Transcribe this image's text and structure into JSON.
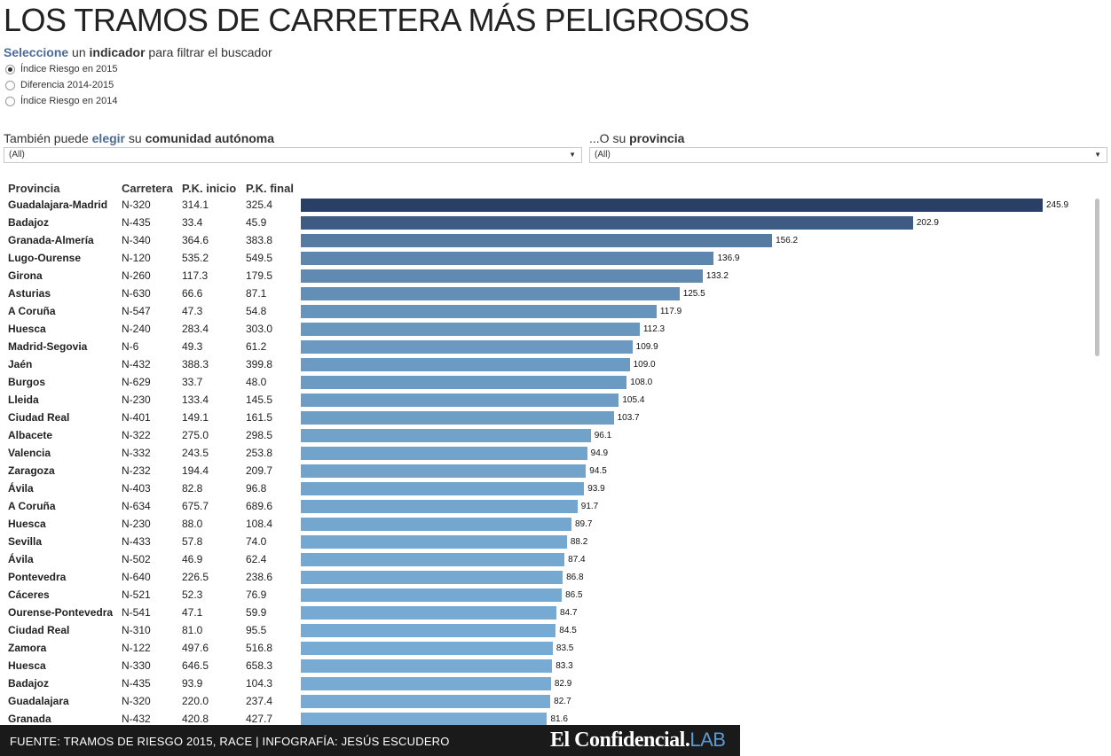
{
  "title": "LOS TRAMOS DE CARRETERA MÁS PELIGROSOS",
  "prompt": {
    "w1": "Seleccione",
    "w2": " un ",
    "w3": "indicador",
    "w4": " para filtrar el buscador"
  },
  "indicators": [
    {
      "label": "Índice Riesgo en 2015",
      "selected": true
    },
    {
      "label": "Diferencia 2014-2015",
      "selected": false
    },
    {
      "label": "Índice Riesgo en 2014",
      "selected": false
    }
  ],
  "ccaa_filter": {
    "p1": "También puede ",
    "p2": "elegir",
    "p3": " su ",
    "p4": "comunidad autónoma",
    "value": "(All)"
  },
  "prov_filter": {
    "p1": "...O su ",
    "p2": "provincia",
    "value": "(All)"
  },
  "table_headers": {
    "provincia": "Provincia",
    "carretera": "Carretera",
    "pk_inicio": "P.K. inicio",
    "pk_final": "P.K. final"
  },
  "chart_data": {
    "type": "bar",
    "orientation": "horizontal",
    "xlim": [
      0,
      250
    ],
    "colors": {
      "low": "#78acd4",
      "high": "#2a3f66"
    },
    "rows": [
      {
        "provincia": "Guadalajara-Madrid",
        "carretera": "N-320",
        "pk_inicio": "314.1",
        "pk_final": "325.4",
        "value": 245.9
      },
      {
        "provincia": "Badajoz",
        "carretera": "N-435",
        "pk_inicio": "33.4",
        "pk_final": "45.9",
        "value": 202.9
      },
      {
        "provincia": "Granada-Almería",
        "carretera": "N-340",
        "pk_inicio": "364.6",
        "pk_final": "383.8",
        "value": 156.2
      },
      {
        "provincia": "Lugo-Ourense",
        "carretera": "N-120",
        "pk_inicio": "535.2",
        "pk_final": "549.5",
        "value": 136.9
      },
      {
        "provincia": "Girona",
        "carretera": "N-260",
        "pk_inicio": "117.3",
        "pk_final": "179.5",
        "value": 133.2
      },
      {
        "provincia": "Asturias",
        "carretera": "N-630",
        "pk_inicio": "66.6",
        "pk_final": "87.1",
        "value": 125.5
      },
      {
        "provincia": "A Coruña",
        "carretera": "N-547",
        "pk_inicio": "47.3",
        "pk_final": "54.8",
        "value": 117.9
      },
      {
        "provincia": "Huesca",
        "carretera": "N-240",
        "pk_inicio": "283.4",
        "pk_final": "303.0",
        "value": 112.3
      },
      {
        "provincia": "Madrid-Segovia",
        "carretera": "N-6",
        "pk_inicio": "49.3",
        "pk_final": "61.2",
        "value": 109.9
      },
      {
        "provincia": "Jaén",
        "carretera": "N-432",
        "pk_inicio": "388.3",
        "pk_final": "399.8",
        "value": 109.0
      },
      {
        "provincia": "Burgos",
        "carretera": "N-629",
        "pk_inicio": "33.7",
        "pk_final": "48.0",
        "value": 108.0
      },
      {
        "provincia": "Lleida",
        "carretera": "N-230",
        "pk_inicio": "133.4",
        "pk_final": "145.5",
        "value": 105.4
      },
      {
        "provincia": "Ciudad Real",
        "carretera": "N-401",
        "pk_inicio": "149.1",
        "pk_final": "161.5",
        "value": 103.7
      },
      {
        "provincia": "Albacete",
        "carretera": "N-322",
        "pk_inicio": "275.0",
        "pk_final": "298.5",
        "value": 96.1
      },
      {
        "provincia": "Valencia",
        "carretera": "N-332",
        "pk_inicio": "243.5",
        "pk_final": "253.8",
        "value": 94.9
      },
      {
        "provincia": "Zaragoza",
        "carretera": "N-232",
        "pk_inicio": "194.4",
        "pk_final": "209.7",
        "value": 94.5
      },
      {
        "provincia": "Ávila",
        "carretera": "N-403",
        "pk_inicio": "82.8",
        "pk_final": "96.8",
        "value": 93.9
      },
      {
        "provincia": "A Coruña",
        "carretera": "N-634",
        "pk_inicio": "675.7",
        "pk_final": "689.6",
        "value": 91.7
      },
      {
        "provincia": "Huesca",
        "carretera": "N-230",
        "pk_inicio": "88.0",
        "pk_final": "108.4",
        "value": 89.7
      },
      {
        "provincia": "Sevilla",
        "carretera": "N-433",
        "pk_inicio": "57.8",
        "pk_final": "74.0",
        "value": 88.2
      },
      {
        "provincia": "Ávila",
        "carretera": "N-502",
        "pk_inicio": "46.9",
        "pk_final": "62.4",
        "value": 87.4
      },
      {
        "provincia": "Pontevedra",
        "carretera": "N-640",
        "pk_inicio": "226.5",
        "pk_final": "238.6",
        "value": 86.8
      },
      {
        "provincia": "Cáceres",
        "carretera": "N-521",
        "pk_inicio": "52.3",
        "pk_final": "76.9",
        "value": 86.5
      },
      {
        "provincia": "Ourense-Pontevedra",
        "carretera": "N-541",
        "pk_inicio": "47.1",
        "pk_final": "59.9",
        "value": 84.7
      },
      {
        "provincia": "Ciudad Real",
        "carretera": "N-310",
        "pk_inicio": "81.0",
        "pk_final": "95.5",
        "value": 84.5
      },
      {
        "provincia": "Zamora",
        "carretera": "N-122",
        "pk_inicio": "497.6",
        "pk_final": "516.8",
        "value": 83.5
      },
      {
        "provincia": "Huesca",
        "carretera": "N-330",
        "pk_inicio": "646.5",
        "pk_final": "658.3",
        "value": 83.3
      },
      {
        "provincia": "Badajoz",
        "carretera": "N-435",
        "pk_inicio": "93.9",
        "pk_final": "104.3",
        "value": 82.9
      },
      {
        "provincia": "Guadalajara",
        "carretera": "N-320",
        "pk_inicio": "220.0",
        "pk_final": "237.4",
        "value": 82.7
      },
      {
        "provincia": "Granada",
        "carretera": "N-432",
        "pk_inicio": "420.8",
        "pk_final": "427.7",
        "value": 81.6
      }
    ]
  },
  "footer": {
    "source": "FUENTE: TRAMOS DE RIESGO 2015, RACE | INFOGRAFÍA: JESÚS ESCUDERO",
    "logo_main": "El Confidencial",
    "logo_dot": ".",
    "logo_lab": "LAB"
  }
}
